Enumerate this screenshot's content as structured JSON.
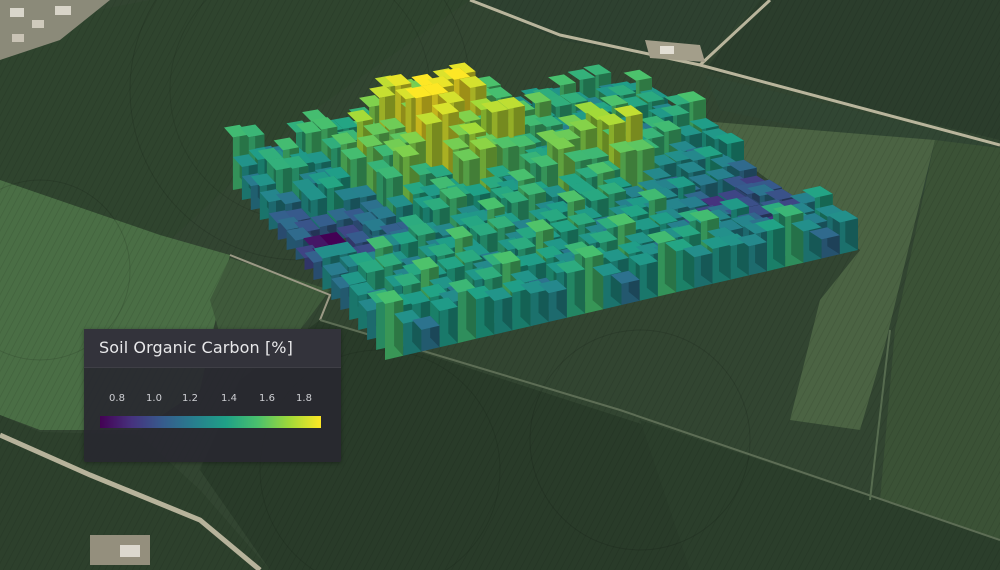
{
  "map": {
    "layer": "3D voxel columns over aerial field imagery",
    "colormap": "viridis"
  },
  "legend": {
    "title": "Soil Organic Carbon [%]",
    "ticks": [
      "0.8",
      "1.0",
      "1.2",
      "1.4",
      "1.6",
      "1.8"
    ],
    "min": 0.75,
    "max": 1.85,
    "colors": [
      "#440154",
      "#46327e",
      "#365c8d",
      "#277f8e",
      "#1fa187",
      "#4ac16d",
      "#a0da39",
      "#fde725"
    ]
  }
}
